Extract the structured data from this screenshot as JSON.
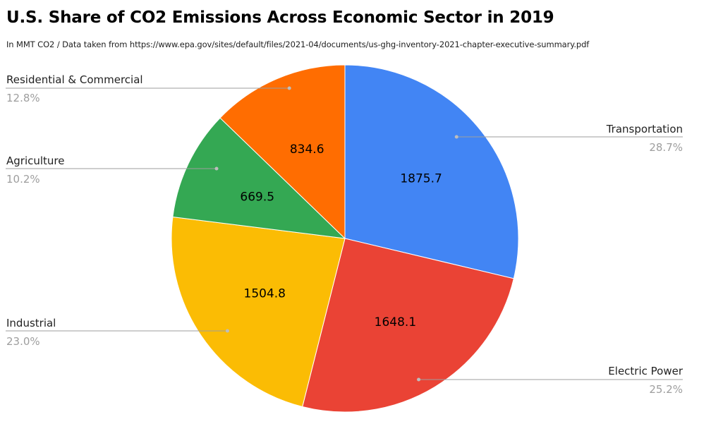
{
  "chart_data": {
    "type": "pie",
    "title": "U.S. Share of CO2 Emissions Across Economic Sector in 2019",
    "subtitle": "In MMT CO2 / Data taken from https://www.epa.gov/sites/default/files/2021-04/documents/us-ghg-inventory-2021-chapter-executive-summary.pdf",
    "slices": [
      {
        "label": "Transportation",
        "value": 1875.7,
        "value_label": "1875.7",
        "percent_label": "28.7%",
        "color": "#4285f4"
      },
      {
        "label": "Electric Power",
        "value": 1648.1,
        "value_label": "1648.1",
        "percent_label": "25.2%",
        "color": "#ea4335"
      },
      {
        "label": "Industrial",
        "value": 1504.8,
        "value_label": "1504.8",
        "percent_label": "23.0%",
        "color": "#fbbc04"
      },
      {
        "label": "Agriculture",
        "value": 669.5,
        "value_label": "669.5",
        "percent_label": "10.2%",
        "color": "#34a853"
      },
      {
        "label": "Residential & Commercial",
        "value": 834.6,
        "value_label": "834.6",
        "percent_label": "12.8%",
        "color": "#ff6d01"
      }
    ]
  }
}
